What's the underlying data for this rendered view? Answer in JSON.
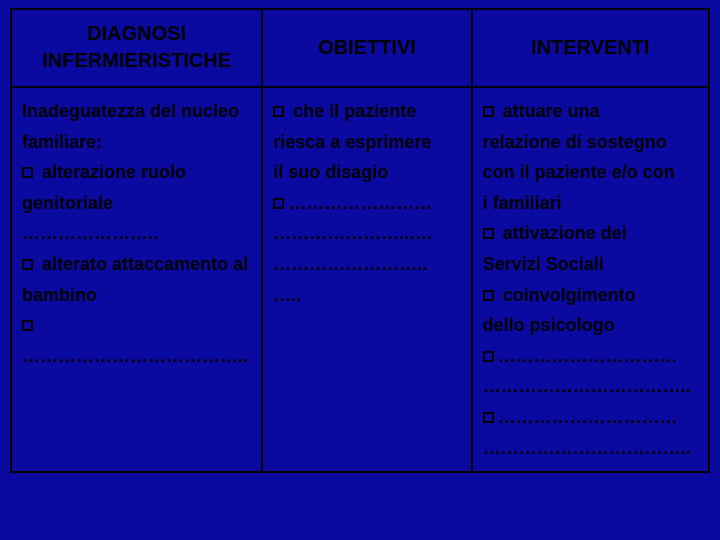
{
  "colors": {
    "background": "#0a0aa0",
    "border": "#000000",
    "text": "#000000"
  },
  "headers": {
    "col1": "DIAGNOSI INFERMIERISTICHE",
    "col2": "OBIETTIVI",
    "col3": "INTERVENTI"
  },
  "col1": {
    "line1": "Inadeguatezza del nucleo",
    "line2": "familiare:",
    "b1": " alterazione ruolo",
    "line3": "genitoriale …………………..",
    "b2": " alterato attaccamento al",
    "line4": "bambino",
    "b3": "……………………………….."
  },
  "col2": {
    "b1": " che il paziente",
    "line1": "riesca a esprimere",
    "line2": "il suo disagio",
    "b2": "……………………",
    "line3": "…………………..….",
    "line4": "……………………..",
    "line5": "….."
  },
  "col3": {
    "b1": " attuare una",
    "line1": "relazione di sostegno",
    "line2": "con il paziente e/o con",
    "line3": "i familiari",
    "b2": " attivazione dei",
    "line4": "Servizi Sociali",
    "b3": " coinvolgimento",
    "line5": "dello psicologo",
    "b4": "…………………………",
    "line6": "……………………………..",
    "b5": "…………………………",
    "line7": "…………………………….."
  }
}
